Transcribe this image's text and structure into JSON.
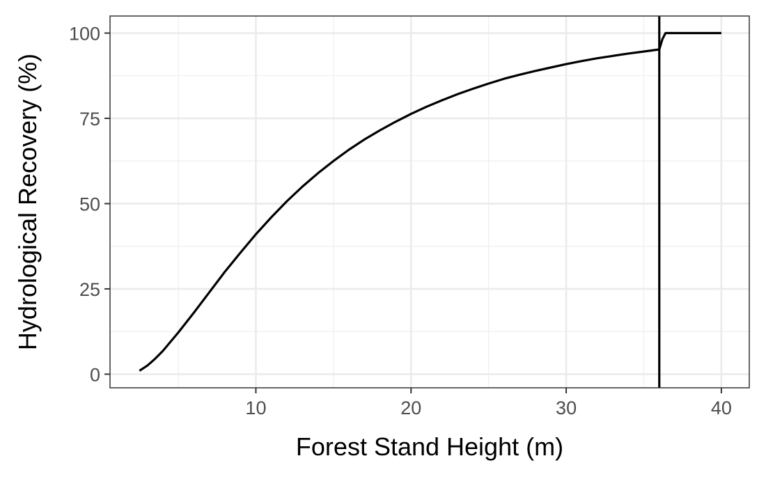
{
  "chart_data": {
    "type": "line",
    "title": "",
    "xlabel": "Forest Stand Height (m)",
    "ylabel": "Hydrological Recovery (%)",
    "xlim": [
      0.6,
      41.8
    ],
    "ylim": [
      -4,
      105
    ],
    "x_ticks": [
      10,
      20,
      30,
      40
    ],
    "y_ticks": [
      0,
      25,
      50,
      75,
      100
    ],
    "x_minor_ticks": [
      5,
      15,
      25,
      35
    ],
    "y_minor_ticks": [
      12.5,
      37.5,
      62.5,
      87.5
    ],
    "grid": true,
    "series": [
      {
        "color": "#000000",
        "x": [
          2.5,
          3,
          3.5,
          4,
          5,
          6,
          7,
          8,
          9,
          10,
          11,
          12,
          13,
          14,
          15,
          16,
          17,
          18,
          19,
          20,
          21,
          22,
          23,
          24,
          25,
          26,
          27,
          28,
          29,
          30,
          31,
          32,
          33,
          34,
          35,
          36,
          36.2,
          36.4,
          40
        ],
        "y": [
          1,
          2.5,
          4.5,
          6.8,
          12.2,
          18,
          24,
          30,
          35.6,
          41,
          46,
          50.7,
          55,
          58.9,
          62.5,
          65.8,
          68.8,
          71.5,
          74,
          76.3,
          78.4,
          80.3,
          82.1,
          83.7,
          85.2,
          86.6,
          87.8,
          88.9,
          89.9,
          90.9,
          91.8,
          92.6,
          93.3,
          94,
          94.6,
          95.2,
          98.2,
          100,
          100
        ]
      }
    ],
    "vertical_line": {
      "x": 36,
      "color": "#000000"
    }
  }
}
